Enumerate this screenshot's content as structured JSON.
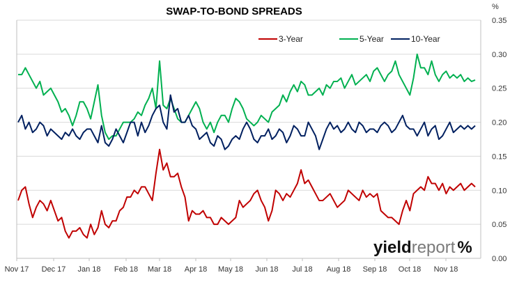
{
  "chart_data": {
    "type": "line",
    "title": "SWAP-TO-BOND SPREADS",
    "y_unit": "%",
    "ylim": [
      0.0,
      0.35
    ],
    "y_ticks": [
      "0.00",
      "0.05",
      "0.10",
      "0.15",
      "0.20",
      "0.25",
      "0.30",
      "0.35"
    ],
    "x_tick_labels": [
      "Nov 17",
      "Dec 17",
      "Jan 18",
      "Feb 18",
      "Mar 18",
      "Apr 18",
      "May 18",
      "Jun 18",
      "Jul 18",
      "Aug 18",
      "Sep 18",
      "Oct 18",
      "Nov 18"
    ],
    "grid": "horizontal",
    "legend_position": "top-center",
    "series": [
      {
        "name": "3-Year",
        "color": "#c00000",
        "values": [
          0.085,
          0.1,
          0.105,
          0.08,
          0.06,
          0.075,
          0.085,
          0.08,
          0.07,
          0.085,
          0.07,
          0.055,
          0.06,
          0.04,
          0.03,
          0.04,
          0.04,
          0.045,
          0.035,
          0.03,
          0.05,
          0.035,
          0.045,
          0.07,
          0.05,
          0.045,
          0.055,
          0.055,
          0.07,
          0.075,
          0.09,
          0.09,
          0.1,
          0.095,
          0.105,
          0.105,
          0.095,
          0.085,
          0.125,
          0.16,
          0.13,
          0.14,
          0.12,
          0.12,
          0.125,
          0.105,
          0.09,
          0.055,
          0.07,
          0.065,
          0.065,
          0.07,
          0.06,
          0.06,
          0.05,
          0.05,
          0.06,
          0.055,
          0.05,
          0.055,
          0.06,
          0.085,
          0.075,
          0.08,
          0.085,
          0.095,
          0.1,
          0.085,
          0.075,
          0.055,
          0.07,
          0.1,
          0.095,
          0.085,
          0.095,
          0.09,
          0.1,
          0.11,
          0.13,
          0.11,
          0.115,
          0.105,
          0.095,
          0.085,
          0.085,
          0.09,
          0.095,
          0.085,
          0.075,
          0.08,
          0.085,
          0.1,
          0.095,
          0.09,
          0.085,
          0.1,
          0.09,
          0.095,
          0.09,
          0.095,
          0.07,
          0.065,
          0.06,
          0.06,
          0.055,
          0.05,
          0.07,
          0.085,
          0.07,
          0.095,
          0.1,
          0.105,
          0.1,
          0.12,
          0.11,
          0.11,
          0.1,
          0.11,
          0.095,
          0.105,
          0.1,
          0.105,
          0.11,
          0.1,
          0.105,
          0.11,
          0.105
        ]
      },
      {
        "name": "5-Year",
        "color": "#00b050",
        "values": [
          0.27,
          0.27,
          0.28,
          0.27,
          0.26,
          0.25,
          0.26,
          0.24,
          0.245,
          0.25,
          0.24,
          0.23,
          0.215,
          0.22,
          0.21,
          0.195,
          0.21,
          0.23,
          0.23,
          0.22,
          0.205,
          0.23,
          0.255,
          0.21,
          0.185,
          0.175,
          0.18,
          0.18,
          0.19,
          0.2,
          0.2,
          0.2,
          0.205,
          0.215,
          0.21,
          0.225,
          0.235,
          0.25,
          0.22,
          0.29,
          0.225,
          0.22,
          0.235,
          0.22,
          0.205,
          0.2,
          0.2,
          0.21,
          0.22,
          0.23,
          0.22,
          0.2,
          0.19,
          0.2,
          0.185,
          0.2,
          0.21,
          0.21,
          0.2,
          0.22,
          0.235,
          0.23,
          0.22,
          0.205,
          0.2,
          0.195,
          0.2,
          0.21,
          0.205,
          0.2,
          0.215,
          0.22,
          0.225,
          0.24,
          0.23,
          0.245,
          0.255,
          0.245,
          0.26,
          0.255,
          0.24,
          0.24,
          0.245,
          0.25,
          0.24,
          0.255,
          0.25,
          0.26,
          0.26,
          0.265,
          0.25,
          0.26,
          0.27,
          0.255,
          0.26,
          0.265,
          0.27,
          0.26,
          0.275,
          0.28,
          0.27,
          0.26,
          0.27,
          0.275,
          0.29,
          0.27,
          0.26,
          0.25,
          0.24,
          0.265,
          0.3,
          0.28,
          0.28,
          0.27,
          0.29,
          0.27,
          0.26,
          0.27,
          0.275,
          0.265,
          0.27,
          0.265,
          0.27,
          0.26,
          0.265,
          0.26,
          0.262
        ]
      },
      {
        "name": "10-Year",
        "color": "#002060",
        "values": [
          0.2,
          0.21,
          0.19,
          0.2,
          0.185,
          0.19,
          0.2,
          0.195,
          0.18,
          0.19,
          0.185,
          0.18,
          0.175,
          0.185,
          0.18,
          0.19,
          0.18,
          0.175,
          0.185,
          0.19,
          0.19,
          0.18,
          0.17,
          0.195,
          0.17,
          0.165,
          0.175,
          0.19,
          0.18,
          0.17,
          0.185,
          0.2,
          0.2,
          0.18,
          0.2,
          0.185,
          0.195,
          0.21,
          0.22,
          0.225,
          0.2,
          0.19,
          0.24,
          0.215,
          0.22,
          0.2,
          0.2,
          0.21,
          0.195,
          0.19,
          0.175,
          0.18,
          0.185,
          0.17,
          0.165,
          0.18,
          0.175,
          0.16,
          0.165,
          0.175,
          0.18,
          0.175,
          0.19,
          0.2,
          0.19,
          0.175,
          0.17,
          0.18,
          0.18,
          0.19,
          0.175,
          0.18,
          0.19,
          0.185,
          0.17,
          0.18,
          0.195,
          0.19,
          0.18,
          0.18,
          0.2,
          0.19,
          0.18,
          0.16,
          0.175,
          0.19,
          0.2,
          0.19,
          0.195,
          0.185,
          0.19,
          0.2,
          0.19,
          0.185,
          0.2,
          0.195,
          0.185,
          0.19,
          0.19,
          0.185,
          0.195,
          0.2,
          0.195,
          0.185,
          0.19,
          0.2,
          0.21,
          0.195,
          0.19,
          0.19,
          0.18,
          0.19,
          0.2,
          0.18,
          0.19,
          0.195,
          0.175,
          0.18,
          0.19,
          0.2,
          0.185,
          0.19,
          0.195,
          0.19,
          0.195,
          0.19,
          0.195
        ]
      }
    ]
  },
  "brand": {
    "part1": "yield",
    "part2": "report",
    "part3": "%"
  }
}
